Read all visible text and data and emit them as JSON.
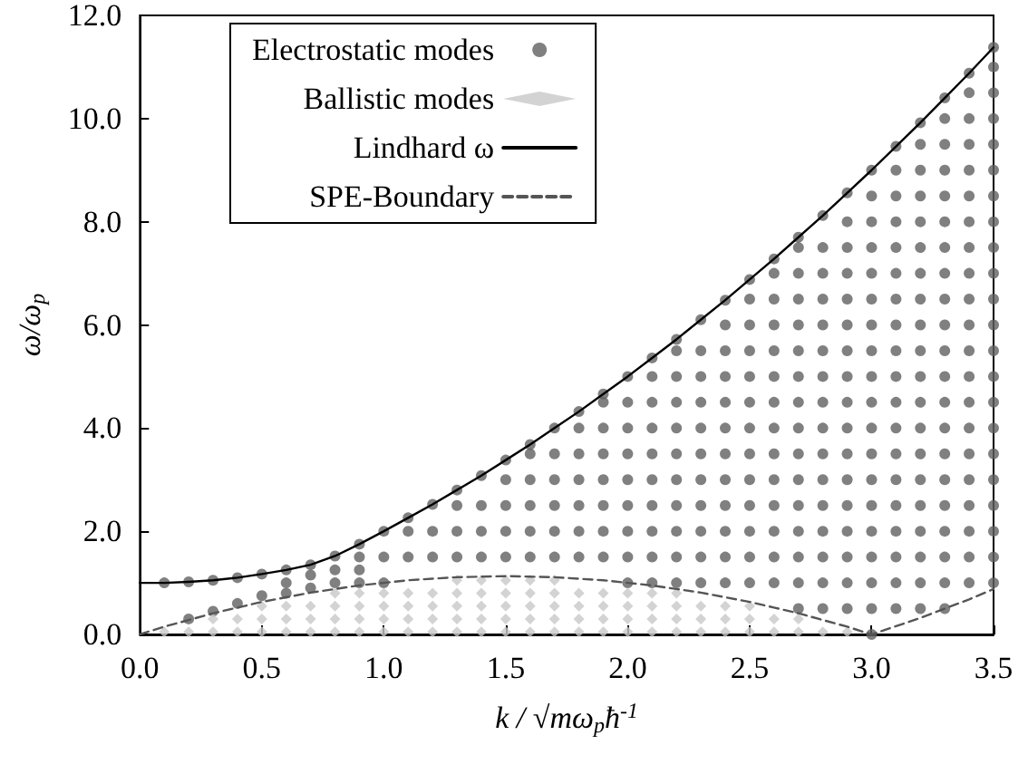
{
  "chart_data": {
    "type": "scatter",
    "xlabel": "k / √mω$_{p}$ħ$^{-1}$",
    "ylabel": "ω/ω$_{p}$",
    "legend": "top left",
    "xlim": [
      0,
      3.5
    ],
    "xticks": [
      {
        "value": 0,
        "label": "0.0"
      },
      {
        "value": 0.5,
        "label": "0.5"
      },
      {
        "value": 1,
        "label": "1.0"
      },
      {
        "value": 1.5,
        "label": "1.5"
      },
      {
        "value": 2,
        "label": "2.0"
      },
      {
        "value": 2.5,
        "label": "2.5"
      },
      {
        "value": 3,
        "label": "3.0"
      },
      {
        "value": 3.5,
        "label": "3.5"
      }
    ],
    "ylim": [
      0,
      12
    ],
    "yticks": [
      {
        "value": 0,
        "label": "0.0"
      },
      {
        "value": 2,
        "label": "2.0"
      },
      {
        "value": 4,
        "label": "4.0"
      },
      {
        "value": 6,
        "label": "6.0"
      },
      {
        "value": 8,
        "label": "8.0"
      },
      {
        "value": 10,
        "label": "10.0"
      },
      {
        "value": 12,
        "label": "12.0"
      }
    ],
    "series": [
      {
        "name": "Electrostatic modes",
        "marker": "circle",
        "color": "#606060",
        "x": [
          0.1,
          0.2,
          0.2,
          0.3,
          0.3,
          0.4,
          0.4,
          0.5,
          0.5,
          0.6,
          0.6,
          0.6,
          0.7,
          0.7,
          0.7,
          0.8,
          0.8,
          0.8,
          0.9,
          0.9,
          0.9,
          0.9,
          1.0,
          1.0,
          1.0,
          1.1,
          1.1,
          1.1,
          1.2,
          1.2,
          1.2,
          1.3,
          1.3,
          1.3,
          1.3,
          1.4,
          1.4,
          1.4,
          1.4,
          1.5,
          1.5,
          1.5,
          1.5,
          1.5,
          1.6,
          1.6,
          1.6,
          1.6,
          1.6,
          1.6,
          1.7,
          1.7,
          1.7,
          1.7,
          1.7,
          1.7,
          1.8,
          1.8,
          1.8,
          1.8,
          1.8,
          1.8,
          1.8,
          1.9,
          1.9,
          1.9,
          1.9,
          1.9,
          1.9,
          1.9,
          1.9,
          2.0,
          2.0,
          2.0,
          2.0,
          2.0,
          2.0,
          2.0,
          2.0,
          2.0,
          2.1,
          2.1,
          2.1,
          2.1,
          2.1,
          2.1,
          2.1,
          2.1,
          2.1,
          2.1,
          2.2,
          2.2,
          2.2,
          2.2,
          2.2,
          2.2,
          2.2,
          2.2,
          2.2,
          2.2,
          2.2,
          2.3,
          2.3,
          2.3,
          2.3,
          2.3,
          2.3,
          2.3,
          2.3,
          2.3,
          2.3,
          2.3,
          2.4,
          2.4,
          2.4,
          2.4,
          2.4,
          2.4,
          2.4,
          2.4,
          2.4,
          2.4,
          2.4,
          2.4,
          2.5,
          2.5,
          2.5,
          2.5,
          2.5,
          2.5,
          2.5,
          2.5,
          2.5,
          2.5,
          2.5,
          2.5,
          2.5,
          2.6,
          2.6,
          2.6,
          2.6,
          2.6,
          2.6,
          2.6,
          2.6,
          2.6,
          2.6,
          2.6,
          2.6,
          2.6,
          2.6,
          2.7,
          2.7,
          2.7,
          2.7,
          2.7,
          2.7,
          2.7,
          2.7,
          2.7,
          2.7,
          2.7,
          2.7,
          2.7,
          2.7,
          2.7,
          2.7,
          2.8,
          2.8,
          2.8,
          2.8,
          2.8,
          2.8,
          2.8,
          2.8,
          2.8,
          2.8,
          2.8,
          2.8,
          2.8,
          2.8,
          2.8,
          2.8,
          2.9,
          2.9,
          2.9,
          2.9,
          2.9,
          2.9,
          2.9,
          2.9,
          2.9,
          2.9,
          2.9,
          2.9,
          2.9,
          2.9,
          2.9,
          2.9,
          2.9,
          3.0,
          3.0,
          3.0,
          3.0,
          3.0,
          3.0,
          3.0,
          3.0,
          3.0,
          3.0,
          3.0,
          3.0,
          3.0,
          3.0,
          3.0,
          3.0,
          3.0,
          3.0,
          3.0,
          3.1,
          3.1,
          3.1,
          3.1,
          3.1,
          3.1,
          3.1,
          3.1,
          3.1,
          3.1,
          3.1,
          3.1,
          3.1,
          3.1,
          3.1,
          3.1,
          3.1,
          3.1,
          3.1,
          3.2,
          3.2,
          3.2,
          3.2,
          3.2,
          3.2,
          3.2,
          3.2,
          3.2,
          3.2,
          3.2,
          3.2,
          3.2,
          3.2,
          3.2,
          3.2,
          3.2,
          3.2,
          3.2,
          3.2,
          3.3,
          3.3,
          3.3,
          3.3,
          3.3,
          3.3,
          3.3,
          3.3,
          3.3,
          3.3,
          3.3,
          3.3,
          3.3,
          3.3,
          3.3,
          3.3,
          3.3,
          3.3,
          3.3,
          3.3,
          3.3,
          3.4,
          3.4,
          3.4,
          3.4,
          3.4,
          3.4,
          3.4,
          3.4,
          3.4,
          3.4,
          3.4,
          3.4,
          3.4,
          3.4,
          3.4,
          3.4,
          3.4,
          3.4,
          3.4,
          3.4,
          3.4,
          3.5,
          3.5,
          3.5,
          3.5,
          3.5,
          3.5,
          3.5,
          3.5,
          3.5,
          3.5,
          3.5,
          3.5,
          3.5,
          3.5,
          3.5,
          3.5,
          3.5,
          3.5,
          3.5,
          3.5,
          3.5,
          3.5
        ],
        "values": [
          1.0,
          1.02,
          0.3,
          1.05,
          0.45,
          1.1,
          0.6,
          1.17,
          0.75,
          1.25,
          0.8,
          1.0,
          1.35,
          0.9,
          1.15,
          1.0,
          1.25,
          1.52,
          1.0,
          1.25,
          1.5,
          1.75,
          1.0,
          1.5,
          2.0,
          1.5,
          2.0,
          2.26,
          1.5,
          2.0,
          2.52,
          1.5,
          2.0,
          2.5,
          2.8,
          1.5,
          2.0,
          2.5,
          3.08,
          1.5,
          2.0,
          2.5,
          3.0,
          3.38,
          1.5,
          2.0,
          2.5,
          3.0,
          3.5,
          3.68,
          1.5,
          2.0,
          2.5,
          3.0,
          3.5,
          4.0,
          1.5,
          2,
          2.5,
          3,
          3.5,
          4,
          4.32,
          1.5,
          2,
          2.5,
          3,
          3.5,
          4,
          4.5,
          4.66,
          1,
          1.5,
          2,
          2.5,
          3,
          3.5,
          4,
          4.5,
          5,
          1,
          1.5,
          2,
          2.5,
          3,
          3.5,
          4,
          4.5,
          5,
          5.36,
          1,
          1.5,
          2,
          2.5,
          3,
          3.5,
          4,
          4.5,
          5,
          5.5,
          5.72,
          1,
          1.5,
          2,
          2.5,
          3,
          3.5,
          4,
          4.5,
          5,
          5.5,
          6.1,
          1,
          1.5,
          2,
          2.5,
          3,
          3.5,
          4,
          4.5,
          5,
          5.5,
          6,
          6.48,
          1,
          1.5,
          2,
          2.5,
          3,
          3.5,
          4,
          4.5,
          5,
          5.5,
          6,
          6.5,
          6.88,
          1,
          1.5,
          2,
          2.5,
          3,
          3.5,
          4,
          4.5,
          5,
          5.5,
          6,
          6.5,
          7,
          7.28,
          0.5,
          1,
          1.5,
          2,
          2.5,
          3,
          3.5,
          4,
          4.5,
          5,
          5.5,
          6,
          6.5,
          7,
          7.5,
          7.7,
          0.5,
          1,
          1.5,
          2,
          2.5,
          3,
          3.5,
          4,
          4.5,
          5,
          5.5,
          6,
          6.5,
          7,
          7.5,
          8.12,
          0.5,
          1,
          1.5,
          2,
          2.5,
          3,
          3.5,
          4,
          4.5,
          5,
          5.5,
          6,
          6.5,
          7,
          7.5,
          8,
          8.56,
          0,
          0.5,
          1,
          1.5,
          2,
          2.5,
          3,
          3.5,
          4,
          4.5,
          5,
          5.5,
          6,
          6.5,
          7,
          7.5,
          8,
          8.5,
          9,
          0.5,
          1,
          1.5,
          2,
          2.5,
          3,
          3.5,
          4,
          4.5,
          5,
          5.5,
          6,
          6.5,
          7,
          7.5,
          8,
          8.5,
          9,
          9.46,
          0.5,
          1,
          1.5,
          2,
          2.5,
          3,
          3.5,
          4,
          4.5,
          5,
          5.5,
          6,
          6.5,
          7,
          7.5,
          8,
          8.5,
          9,
          9.5,
          9.92,
          0.5,
          1,
          1.5,
          2,
          2.5,
          3,
          3.5,
          4,
          4.5,
          5,
          5.5,
          6,
          6.5,
          7,
          7.5,
          8,
          8.5,
          9,
          9.5,
          10,
          10.4,
          1,
          1.5,
          2,
          2.5,
          3,
          3.5,
          4,
          4.5,
          5,
          5.5,
          6,
          6.5,
          7,
          7.5,
          8,
          8.5,
          9,
          9.5,
          10,
          10.5,
          10.88,
          1,
          1.5,
          2,
          2.5,
          3,
          3.5,
          4,
          4.5,
          5,
          5.5,
          6,
          6.5,
          7,
          7.5,
          8,
          8.5,
          9,
          9.5,
          10,
          10.5,
          11,
          11.38
        ]
      },
      {
        "name": "Ballistic modes",
        "marker": "diamond",
        "color": "#c8c8c8",
        "x": [
          0.1,
          0.2,
          0.3,
          0.3,
          0.4,
          0.4,
          0.5,
          0.5,
          0.5,
          0.6,
          0.6,
          0.6,
          0.7,
          0.7,
          0.7,
          0.8,
          0.8,
          0.8,
          0.8,
          0.9,
          0.9,
          0.9,
          0.9,
          1.0,
          1.0,
          1.0,
          1.0,
          1.1,
          1.1,
          1.1,
          1.1,
          1.2,
          1.2,
          1.2,
          1.2,
          1.3,
          1.3,
          1.3,
          1.3,
          1.3,
          1.4,
          1.4,
          1.4,
          1.4,
          1.4,
          1.5,
          1.5,
          1.5,
          1.5,
          1.5,
          1.6,
          1.6,
          1.6,
          1.6,
          1.6,
          1.7,
          1.7,
          1.7,
          1.7,
          1.7,
          1.8,
          1.8,
          1.8,
          1.8,
          1.9,
          1.9,
          1.9,
          1.9,
          2.0,
          2.0,
          2.0,
          2.0,
          2.1,
          2.1,
          2.1,
          2.1,
          2.2,
          2.2,
          2.2,
          2.2,
          2.3,
          2.3,
          2.3,
          2.4,
          2.4,
          2.4,
          2.5,
          2.5,
          2.5,
          2.6,
          2.6,
          2.7,
          2.7,
          2.8,
          2.9
        ],
        "values": [
          0.05,
          0.05,
          0.05,
          0.3,
          0.05,
          0.3,
          0.05,
          0.3,
          0.55,
          0.05,
          0.3,
          0.55,
          0.05,
          0.3,
          0.55,
          0.05,
          0.3,
          0.55,
          0.8,
          0.05,
          0.3,
          0.55,
          0.8,
          0.05,
          0.3,
          0.55,
          0.8,
          0.05,
          0.3,
          0.55,
          0.8,
          0.05,
          0.3,
          0.55,
          0.8,
          0.05,
          0.3,
          0.55,
          0.8,
          1.05,
          0.05,
          0.3,
          0.55,
          0.8,
          1.05,
          0.05,
          0.3,
          0.55,
          0.8,
          1.05,
          0.05,
          0.3,
          0.55,
          0.8,
          1.05,
          0.05,
          0.3,
          0.55,
          0.8,
          1.05,
          0.05,
          0.3,
          0.55,
          0.8,
          0.05,
          0.3,
          0.55,
          0.8,
          0.05,
          0.3,
          0.55,
          0.8,
          0.05,
          0.3,
          0.55,
          0.8,
          0.05,
          0.3,
          0.55,
          0.8,
          0.05,
          0.3,
          0.55,
          0.05,
          0.3,
          0.55,
          0.05,
          0.3,
          0.55,
          0.05,
          0.3,
          0.05,
          0.3,
          0.05,
          0.05
        ]
      },
      {
        "name": "Lindhard ω",
        "type": "line",
        "marker": "none",
        "line_style": "solid",
        "color": "#000000",
        "x": [
          0,
          0.1,
          0.2,
          0.3,
          0.4,
          0.5,
          0.6,
          0.7,
          0.8,
          0.9,
          1.0,
          1.1,
          1.2,
          1.3,
          1.4,
          1.5,
          1.6,
          1.7,
          1.8,
          1.9,
          2.0,
          2.1,
          2.2,
          2.3,
          2.4,
          2.5,
          2.6,
          2.7,
          2.8,
          2.9,
          3.0,
          3.1,
          3.2,
          3.3,
          3.4,
          3.5
        ],
        "values": [
          1.0,
          1.0,
          1.02,
          1.05,
          1.1,
          1.17,
          1.25,
          1.35,
          1.52,
          1.75,
          2.0,
          2.26,
          2.52,
          2.8,
          3.08,
          3.38,
          3.68,
          4.0,
          4.32,
          4.66,
          5.0,
          5.36,
          5.72,
          6.1,
          6.48,
          6.88,
          7.28,
          7.7,
          8.12,
          8.56,
          9.0,
          9.46,
          9.92,
          10.4,
          10.88,
          11.38
        ]
      },
      {
        "name": "SPE-Boundary",
        "type": "line",
        "marker": "none",
        "line_style": "dashed",
        "color": "#555555",
        "x": [
          0,
          0.1,
          0.2,
          0.3,
          0.4,
          0.5,
          0.6,
          0.7,
          0.8,
          0.9,
          1.0,
          1.1,
          1.2,
          1.3,
          1.4,
          1.5,
          1.6,
          1.7,
          1.8,
          1.9,
          2.0,
          2.1,
          2.2,
          2.3,
          2.4,
          2.5,
          2.6,
          2.7,
          2.8,
          2.9,
          3.0,
          3.1,
          3.2,
          3.3,
          3.4,
          3.5
        ],
        "values": [
          0,
          0.15,
          0.28,
          0.41,
          0.52,
          0.63,
          0.72,
          0.81,
          0.88,
          0.95,
          1.0,
          1.05,
          1.08,
          1.11,
          1.12,
          1.13,
          1.12,
          1.11,
          1.08,
          1.05,
          1.0,
          0.95,
          0.88,
          0.81,
          0.72,
          0.63,
          0.52,
          0.41,
          0.28,
          0.15,
          0,
          0.16,
          0.32,
          0.5,
          0.68,
          0.88
        ]
      }
    ]
  }
}
